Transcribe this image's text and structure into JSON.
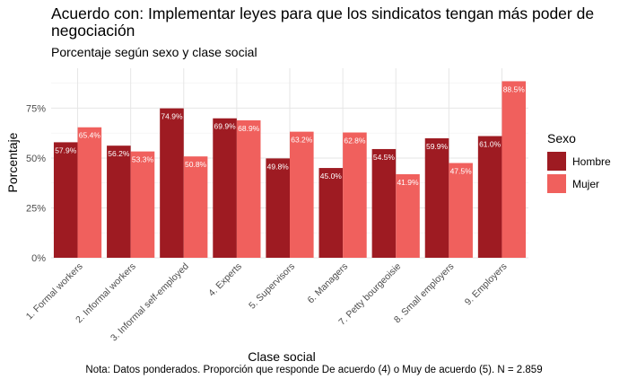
{
  "title": "Acuerdo con: Implementar leyes para que los sindicatos tengan más poder de negociación",
  "subtitle": "Porcentaje según sexo y clase social",
  "caption": "Nota: Datos ponderados. Proporción que responde De acuerdo (4) o Muy de acuerdo (5). N = 2.859",
  "legend": {
    "title": "Sexo",
    "items": [
      {
        "label": "Hombre",
        "color": "#9E1B22"
      },
      {
        "label": "Mujer",
        "color": "#F0605D"
      }
    ]
  },
  "chart_data": {
    "type": "bar",
    "title": "Acuerdo con: Implementar leyes para que los sindicatos tengan más poder de negociación",
    "xlabel": "Clase social",
    "ylabel": "Porcentaje",
    "ylim": [
      0,
      95
    ],
    "yticks": [
      0,
      25,
      50,
      75
    ],
    "ytick_labels": [
      "0%",
      "25%",
      "50%",
      "75%"
    ],
    "grid": true,
    "legend_position": "right",
    "categories": [
      "1. Formal workers",
      "2. Informal workers",
      "3. Informal self-employed",
      "4. Experts",
      "5. Supervisors",
      "6. Managers",
      "7. Petty bourgeoisie",
      "8. Small employers",
      "9. Employers"
    ],
    "series": [
      {
        "name": "Hombre",
        "color": "#9E1B22",
        "values": [
          57.9,
          56.2,
          74.9,
          69.9,
          49.8,
          45.0,
          54.5,
          59.9,
          61.0
        ],
        "labels": [
          "57.9%",
          "56.2%",
          "74.9%",
          "69.9%",
          "49.8%",
          "45.0%",
          "54.5%",
          "59.9%",
          "61.0%"
        ]
      },
      {
        "name": "Mujer",
        "color": "#F0605D",
        "values": [
          65.4,
          53.3,
          50.8,
          68.9,
          63.2,
          62.8,
          41.9,
          47.5,
          88.5
        ],
        "labels": [
          "65.4%",
          "53.3%",
          "50.8%",
          "68.9%",
          "63.2%",
          "62.8%",
          "41.9%",
          "47.5%",
          "88.5%"
        ]
      }
    ]
  }
}
